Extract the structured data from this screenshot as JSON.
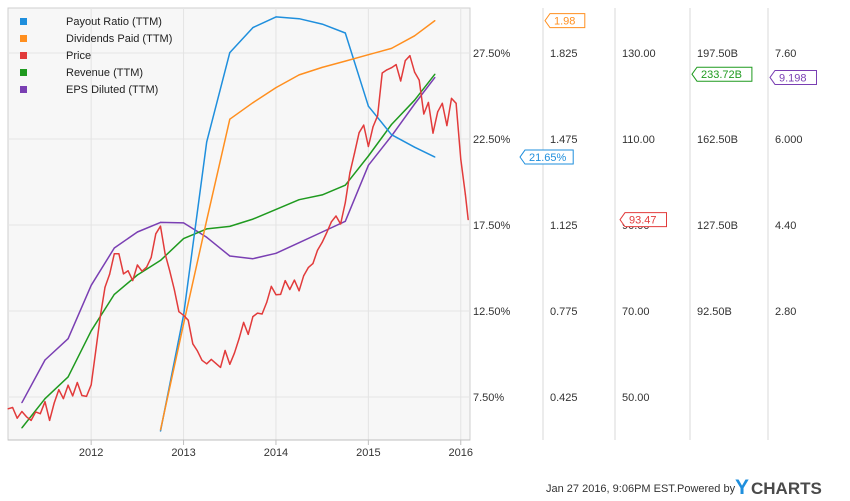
{
  "chart_data": {
    "type": "line",
    "grid": true,
    "legend_position": "top-left",
    "x_ticks": [
      "2012",
      "2013",
      "2014",
      "2015",
      "2016"
    ],
    "x_range": [
      2011.1,
      2016.1
    ],
    "series": [
      {
        "name": "Payout Ratio (TTM)",
        "color": "#1f8fdd",
        "axis_ticks": [
          "27.50%",
          "22.50%",
          "17.50%",
          "12.50%",
          "7.50%"
        ],
        "axis_range": [
          5.8,
          30.0
        ],
        "last_label": "21.65%",
        "points": [
          [
            2012.75,
            6.3
          ],
          [
            2013.0,
            12.8
          ],
          [
            2013.25,
            22.5
          ],
          [
            2013.5,
            27.5
          ],
          [
            2013.75,
            28.9
          ],
          [
            2014.0,
            29.5
          ],
          [
            2014.25,
            29.4
          ],
          [
            2014.5,
            29.1
          ],
          [
            2014.75,
            28.6
          ],
          [
            2015.0,
            24.5
          ],
          [
            2015.25,
            22.9
          ],
          [
            2015.5,
            22.2
          ],
          [
            2015.72,
            21.65
          ]
        ]
      },
      {
        "name": "Dividends Paid (TTM)",
        "color": "#ff8f1f",
        "axis_ticks": [
          "1.825",
          "1.475",
          "1.125",
          "0.775",
          "0.425"
        ],
        "axis_range": [
          0.32,
          2.03
        ],
        "last_label": "1.98",
        "points": [
          [
            2012.75,
            0.36
          ],
          [
            2013.0,
            0.78
          ],
          [
            2013.25,
            1.19
          ],
          [
            2013.5,
            1.59
          ],
          [
            2013.75,
            1.655
          ],
          [
            2014.0,
            1.715
          ],
          [
            2014.25,
            1.765
          ],
          [
            2014.5,
            1.795
          ],
          [
            2014.75,
            1.82
          ],
          [
            2015.0,
            1.845
          ],
          [
            2015.25,
            1.87
          ],
          [
            2015.5,
            1.92
          ],
          [
            2015.72,
            1.98
          ]
        ]
      },
      {
        "name": "Price",
        "color": "#e23b3b",
        "axis_ticks": [
          "130.00",
          "110.00",
          "90.00",
          "70.00",
          "50.00"
        ],
        "axis_range": [
          44.0,
          141.0
        ],
        "last_label": "93.47",
        "points": [
          [
            2011.1,
            51.0
          ],
          [
            2011.15,
            51.3
          ],
          [
            2011.2,
            48.9
          ],
          [
            2011.25,
            50.4
          ],
          [
            2011.3,
            49.2
          ],
          [
            2011.35,
            48.4
          ],
          [
            2011.4,
            50.3
          ],
          [
            2011.45,
            49.9
          ],
          [
            2011.5,
            52.6
          ],
          [
            2011.55,
            48.4
          ],
          [
            2011.6,
            52.3
          ],
          [
            2011.65,
            55.3
          ],
          [
            2011.7,
            53.3
          ],
          [
            2011.75,
            56.3
          ],
          [
            2011.8,
            53.9
          ],
          [
            2011.85,
            56.9
          ],
          [
            2011.9,
            54.0
          ],
          [
            2011.95,
            53.8
          ],
          [
            2012.0,
            56.4
          ],
          [
            2012.05,
            64.1
          ],
          [
            2012.1,
            71.9
          ],
          [
            2012.15,
            78.3
          ],
          [
            2012.2,
            81.2
          ],
          [
            2012.25,
            85.8
          ],
          [
            2012.3,
            85.8
          ],
          [
            2012.35,
            81.3
          ],
          [
            2012.4,
            82.0
          ],
          [
            2012.45,
            79.8
          ],
          [
            2012.5,
            83.3
          ],
          [
            2012.55,
            81.9
          ],
          [
            2012.6,
            82.8
          ],
          [
            2012.65,
            85.0
          ],
          [
            2012.7,
            90.3
          ],
          [
            2012.75,
            92.0
          ],
          [
            2012.8,
            85.8
          ],
          [
            2012.85,
            82.0
          ],
          [
            2012.9,
            77.8
          ],
          [
            2012.95,
            72.8
          ],
          [
            2013.0,
            72.0
          ],
          [
            2013.05,
            70.9
          ],
          [
            2013.1,
            65.6
          ],
          [
            2013.15,
            64.0
          ],
          [
            2013.2,
            61.9
          ],
          [
            2013.25,
            61.1
          ],
          [
            2013.3,
            62.1
          ],
          [
            2013.35,
            61.2
          ],
          [
            2013.4,
            60.3
          ],
          [
            2013.45,
            64.1
          ],
          [
            2013.5,
            61.0
          ],
          [
            2013.55,
            63.5
          ],
          [
            2013.6,
            66.7
          ],
          [
            2013.65,
            70.4
          ],
          [
            2013.7,
            67.7
          ],
          [
            2013.75,
            71.7
          ],
          [
            2013.8,
            72.5
          ],
          [
            2013.85,
            72.3
          ],
          [
            2013.9,
            74.9
          ],
          [
            2013.95,
            78.5
          ],
          [
            2014.0,
            76.6
          ],
          [
            2014.05,
            76.7
          ],
          [
            2014.1,
            79.8
          ],
          [
            2014.15,
            77.8
          ],
          [
            2014.2,
            79.9
          ],
          [
            2014.25,
            77.5
          ],
          [
            2014.3,
            80.9
          ],
          [
            2014.35,
            82.7
          ],
          [
            2014.4,
            83.6
          ],
          [
            2014.45,
            86.6
          ],
          [
            2014.5,
            88.4
          ],
          [
            2014.55,
            90.6
          ],
          [
            2014.6,
            93.0
          ],
          [
            2014.65,
            94.3
          ],
          [
            2014.7,
            92.5
          ],
          [
            2014.75,
            97.3
          ],
          [
            2014.8,
            104.0
          ],
          [
            2014.85,
            108.4
          ],
          [
            2014.9,
            113.0
          ],
          [
            2014.95,
            114.7
          ],
          [
            2015.0,
            109.9
          ],
          [
            2015.05,
            114.3
          ],
          [
            2015.1,
            116.8
          ],
          [
            2015.15,
            126.4
          ],
          [
            2015.2,
            127.1
          ],
          [
            2015.25,
            127.6
          ],
          [
            2015.3,
            128.3
          ],
          [
            2015.35,
            124.6
          ],
          [
            2015.4,
            129.2
          ],
          [
            2015.45,
            130.3
          ],
          [
            2015.5,
            126.6
          ],
          [
            2015.55,
            124.8
          ],
          [
            2015.6,
            117.2
          ],
          [
            2015.65,
            119.8
          ],
          [
            2015.7,
            112.9
          ],
          [
            2015.75,
            117.7
          ],
          [
            2015.8,
            119.6
          ],
          [
            2015.85,
            114.6
          ],
          [
            2015.9,
            120.7
          ],
          [
            2015.95,
            119.6
          ],
          [
            2016.0,
            107.0
          ],
          [
            2016.05,
            99.1
          ],
          [
            2016.08,
            93.47
          ]
        ]
      },
      {
        "name": "Revenue (TTM)",
        "color": "#1f9a1f",
        "axis_ticks": [
          "197.50B",
          "162.50B",
          "127.50B",
          "92.50B"
        ],
        "axis_range": [
          83.0,
          261.0
        ],
        "last_label": "233.72B",
        "points": [
          [
            2011.25,
            88.0
          ],
          [
            2011.5,
            100.0
          ],
          [
            2011.75,
            109.0
          ],
          [
            2012.0,
            128.0
          ],
          [
            2012.25,
            143.0
          ],
          [
            2012.5,
            151.0
          ],
          [
            2012.75,
            157.0
          ],
          [
            2013.0,
            166.0
          ],
          [
            2013.25,
            170.0
          ],
          [
            2013.5,
            171.0
          ],
          [
            2013.75,
            174.0
          ],
          [
            2014.0,
            178.0
          ],
          [
            2014.25,
            182.0
          ],
          [
            2014.5,
            184.0
          ],
          [
            2014.75,
            188.0
          ],
          [
            2015.0,
            200.0
          ],
          [
            2015.25,
            213.0
          ],
          [
            2015.5,
            223.0
          ],
          [
            2015.72,
            233.72
          ]
        ]
      },
      {
        "name": "EPS Diluted (TTM)",
        "color": "#7a3fb3",
        "axis_ticks": [
          "7.60",
          "6.000",
          "4.40",
          "2.80"
        ],
        "axis_range": [
          2.4,
          10.5
        ],
        "last_label": "9.198",
        "points": [
          [
            2011.25,
            3.1
          ],
          [
            2011.5,
            3.9
          ],
          [
            2011.75,
            4.3
          ],
          [
            2012.0,
            5.3
          ],
          [
            2012.25,
            6.0
          ],
          [
            2012.5,
            6.3
          ],
          [
            2012.75,
            6.48
          ],
          [
            2013.0,
            6.47
          ],
          [
            2013.25,
            6.2
          ],
          [
            2013.5,
            5.85
          ],
          [
            2013.75,
            5.8
          ],
          [
            2014.0,
            5.9
          ],
          [
            2014.25,
            6.1
          ],
          [
            2014.5,
            6.3
          ],
          [
            2014.75,
            6.5
          ],
          [
            2015.0,
            7.55
          ],
          [
            2015.25,
            8.1
          ],
          [
            2015.5,
            8.7
          ],
          [
            2015.72,
            9.198
          ]
        ]
      }
    ]
  },
  "footer": {
    "timestamp": "Jan 27 2016, 9:06PM EST.",
    "powered_by": "Powered by",
    "brand_y": "Y",
    "brand_rest": "CHARTS"
  }
}
